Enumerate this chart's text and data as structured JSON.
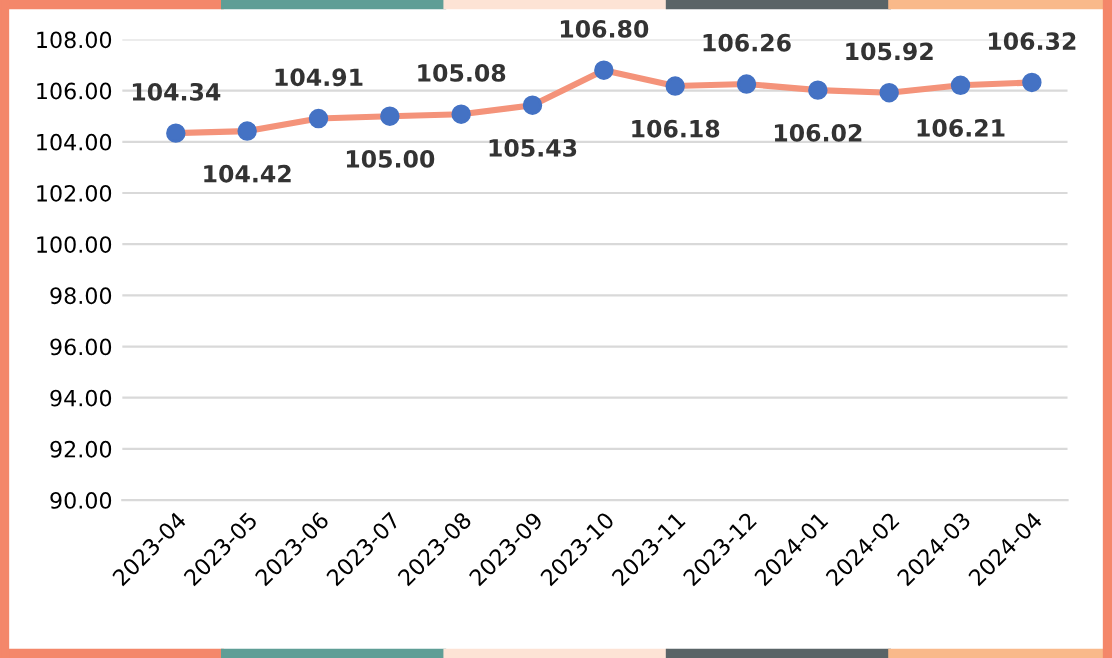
{
  "chart_data": {
    "type": "line",
    "categories": [
      "2023-04",
      "2023-05",
      "2023-06",
      "2023-07",
      "2023-08",
      "2023-09",
      "2023-10",
      "2023-11",
      "2023-12",
      "2024-01",
      "2024-02",
      "2024-03",
      "2024-04"
    ],
    "series": [
      {
        "color": "#f4937a",
        "colors": [
          "#4472c4",
          "#4472c4",
          "#4472c4",
          "#4472c4",
          "#4472c4",
          "#4472c4",
          "#4472c4",
          "#4472c4",
          "#4472c4",
          "#4472c4",
          "#4472c4",
          "#4472c4",
          "#4472c4"
        ],
        "values": [
          104.34,
          104.42,
          104.91,
          105.0,
          105.08,
          105.43,
          106.8,
          106.18,
          106.26,
          106.02,
          105.92,
          106.21,
          106.32
        ],
        "value_labels": [
          "104.34",
          "104.42",
          "104.91",
          "105.00",
          "105.08",
          "105.43",
          "106.80",
          "106.18",
          "106.26",
          "106.02",
          "105.92",
          "106.21",
          "106.32"
        ]
      }
    ],
    "ylim": [
      90,
      108
    ],
    "yticks": [
      {
        "value": 90,
        "label": "90.00"
      },
      {
        "value": 92,
        "label": "92.00"
      },
      {
        "value": 94,
        "label": "94.00"
      },
      {
        "value": 96,
        "label": "96.00"
      },
      {
        "value": 98,
        "label": "98.00"
      },
      {
        "value": 100,
        "label": "100.00"
      },
      {
        "value": 102,
        "label": "102.00"
      },
      {
        "value": 104,
        "label": "104.00"
      },
      {
        "value": 106,
        "label": "106.00"
      },
      {
        "value": 108,
        "label": "108.00"
      }
    ],
    "grid": "y",
    "marker": "circle",
    "line_style": "solid"
  }
}
